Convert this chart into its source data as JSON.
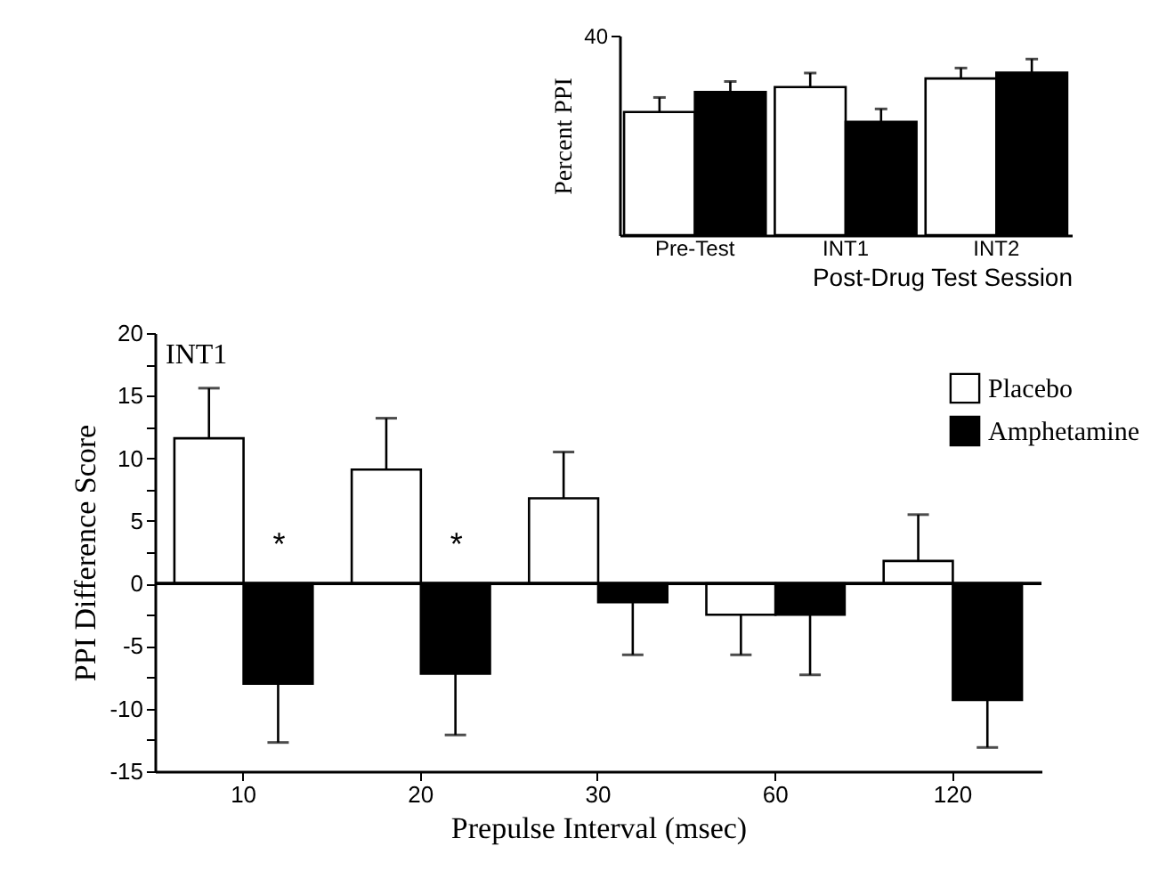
{
  "chart_data": [
    {
      "type": "bar",
      "xlabel": "Prepulse Interval (msec)",
      "ylabel": "PPI Difference Score",
      "categories": [
        "10",
        "20",
        "30",
        "60",
        "120"
      ],
      "series": [
        {
          "name": "Placebo",
          "color": "#ffffff",
          "values": [
            11.6,
            9.1,
            6.8,
            -2.5,
            1.8
          ],
          "errors": [
            [
              11.6,
              15.6
            ],
            [
              9.1,
              13.2
            ],
            [
              6.8,
              10.5
            ],
            [
              -5.7,
              -2.5
            ],
            [
              1.8,
              5.5
            ]
          ]
        },
        {
          "name": "Amphetamine",
          "color": "#000000",
          "values": [
            -8.0,
            -7.2,
            -1.5,
            -2.5,
            -9.3
          ],
          "errors": [
            [
              -12.7,
              -8.0
            ],
            [
              -12.1,
              -7.2
            ],
            [
              -5.7,
              -1.5
            ],
            [
              -7.3,
              -2.5
            ],
            [
              -13.1,
              -9.3
            ]
          ]
        }
      ],
      "ylim": [
        -15,
        20
      ],
      "yticks": [
        -15,
        {
          "value": -12.5,
          "label": null
        },
        -10,
        {
          "value": -7.5,
          "label": null
        },
        -5,
        {
          "value": -2.5,
          "label": null
        },
        0,
        {
          "value": 2.5,
          "label": null
        },
        5,
        {
          "value": 7.5,
          "label": null
        },
        10,
        {
          "value": 12.5,
          "label": null
        },
        15,
        {
          "value": 17.5,
          "label": null
        },
        20
      ],
      "ref_lines": [
        {
          "axis": "y",
          "value": 0
        }
      ],
      "annotations": [
        "INT1",
        {
          "text": "*",
          "x": "10",
          "y": 3
        },
        {
          "text": "*",
          "x": "20",
          "y": 3
        }
      ],
      "legend": "right",
      "grid": false
    },
    {
      "type": "bar",
      "xlabel": "Post-Drug Test Session",
      "ylabel": "Percent PPI",
      "categories": [
        "Pre-Test",
        "INT1",
        "INT2"
      ],
      "series": [
        {
          "color": "#ffffff",
          "values": [
            24.7,
            29.7,
            31.4
          ],
          "errors": [
            [
              24.7,
              27.6
            ],
            [
              29.7,
              32.5
            ],
            [
              31.4,
              33.5
            ]
          ]
        },
        {
          "color": "#000000",
          "values": [
            28.7,
            22.7,
            32.6
          ],
          "errors": [
            [
              28.7,
              30.8
            ],
            [
              22.7,
              25.3
            ],
            [
              32.6,
              35.3
            ]
          ]
        }
      ],
      "ylim": [
        0,
        40
      ],
      "yticks": [
        40
      ],
      "legend": false,
      "grid": false
    }
  ]
}
